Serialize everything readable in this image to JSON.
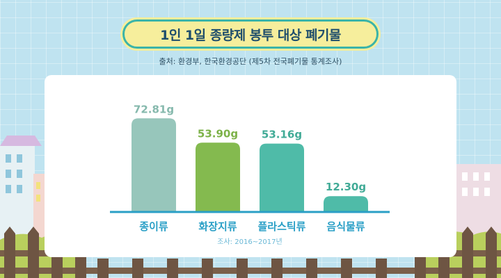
{
  "header": {
    "title": "1인 1일 종량제 봉투 대상 폐기물",
    "source": "출처: 환경부, 한국환경공단 (제5차 전국폐기물 통계조사)"
  },
  "chart_data": {
    "type": "bar",
    "title": "1인 1일 종량제 봉투 대상 폐기물",
    "categories": [
      "종이류",
      "화장지류",
      "플라스틱류",
      "음식물류"
    ],
    "values": [
      72.81,
      53.9,
      53.16,
      12.3
    ],
    "value_labels": [
      "72.81g",
      "53.90g",
      "53.16g",
      "12.30g"
    ],
    "unit": "g",
    "note": "조사: 2016~2017년",
    "ylim": [
      0,
      80
    ],
    "grid": false,
    "legend": "none",
    "bar_colors": [
      "#97c6bb",
      "#84ba4f",
      "#4fbba8",
      "#4fbba8"
    ],
    "value_label_colors": [
      "#86b9ad",
      "#7db249",
      "#42ab97",
      "#42ab97"
    ],
    "axis_color": "#2a9fc6"
  },
  "colors": {
    "background": "#bfe3f0",
    "title_pill": "#f6ee9c",
    "title_border": "#3bb4a8",
    "fence": "#6e5543",
    "grass": "#b9cf5d"
  }
}
